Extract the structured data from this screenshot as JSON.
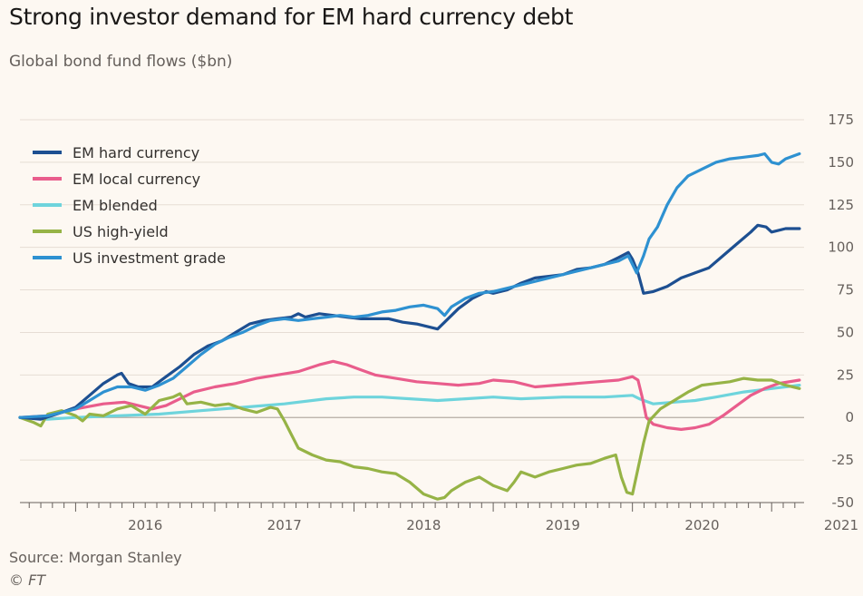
{
  "title": "Strong investor demand for EM hard currency debt",
  "subtitle": "Global bond fund flows ($bn)",
  "source": "Source: Morgan Stanley",
  "credit": "© FT",
  "chart_data": {
    "type": "line",
    "xlim": [
      2015.6,
      2021.22
    ],
    "ylim": [
      -50,
      175
    ],
    "y_ticks": [
      175,
      150,
      125,
      100,
      75,
      50,
      25,
      0,
      -25,
      -50
    ],
    "x_tick_labels": [
      {
        "label": "2016",
        "year": 2016
      },
      {
        "label": "2017",
        "year": 2017
      },
      {
        "label": "2018",
        "year": 2018
      },
      {
        "label": "2019",
        "year": 2019
      },
      {
        "label": "2020",
        "year": 2020
      },
      {
        "label": "2021",
        "year": 2021
      }
    ],
    "grid": "horizontal",
    "legend_position": "top-left",
    "series": [
      {
        "name": "EM hard currency",
        "color": "#1d4f91",
        "points": [
          [
            2015.6,
            0
          ],
          [
            2015.75,
            -1
          ],
          [
            2015.9,
            3
          ],
          [
            2016.0,
            6
          ],
          [
            2016.1,
            13
          ],
          [
            2016.2,
            20
          ],
          [
            2016.3,
            25
          ],
          [
            2016.33,
            26
          ],
          [
            2016.38,
            20
          ],
          [
            2016.45,
            18
          ],
          [
            2016.55,
            18
          ],
          [
            2016.65,
            24
          ],
          [
            2016.75,
            30
          ],
          [
            2016.85,
            37
          ],
          [
            2016.95,
            42
          ],
          [
            2017.05,
            45
          ],
          [
            2017.15,
            50
          ],
          [
            2017.25,
            55
          ],
          [
            2017.35,
            57
          ],
          [
            2017.45,
            58
          ],
          [
            2017.55,
            59
          ],
          [
            2017.6,
            61
          ],
          [
            2017.65,
            59
          ],
          [
            2017.75,
            61
          ],
          [
            2017.85,
            60
          ],
          [
            2017.95,
            59
          ],
          [
            2018.05,
            58
          ],
          [
            2018.15,
            58
          ],
          [
            2018.25,
            58
          ],
          [
            2018.35,
            56
          ],
          [
            2018.45,
            55
          ],
          [
            2018.55,
            53
          ],
          [
            2018.6,
            52
          ],
          [
            2018.65,
            56
          ],
          [
            2018.75,
            64
          ],
          [
            2018.85,
            70
          ],
          [
            2018.95,
            74
          ],
          [
            2019.0,
            73
          ],
          [
            2019.1,
            75
          ],
          [
            2019.2,
            79
          ],
          [
            2019.3,
            82
          ],
          [
            2019.4,
            83
          ],
          [
            2019.5,
            84
          ],
          [
            2019.6,
            87
          ],
          [
            2019.7,
            88
          ],
          [
            2019.8,
            90
          ],
          [
            2019.9,
            94
          ],
          [
            2019.97,
            97
          ],
          [
            2020.0,
            93
          ],
          [
            2020.04,
            85
          ],
          [
            2020.08,
            73
          ],
          [
            2020.15,
            74
          ],
          [
            2020.25,
            77
          ],
          [
            2020.35,
            82
          ],
          [
            2020.45,
            85
          ],
          [
            2020.55,
            88
          ],
          [
            2020.65,
            95
          ],
          [
            2020.75,
            102
          ],
          [
            2020.85,
            109
          ],
          [
            2020.9,
            113
          ],
          [
            2020.96,
            112
          ],
          [
            2021.0,
            109
          ],
          [
            2021.1,
            111
          ],
          [
            2021.2,
            111
          ]
        ]
      },
      {
        "name": "EM local currency",
        "color": "#e95d8c",
        "points": [
          [
            2015.6,
            0
          ],
          [
            2015.8,
            1
          ],
          [
            2016.0,
            5
          ],
          [
            2016.2,
            8
          ],
          [
            2016.35,
            9
          ],
          [
            2016.45,
            7
          ],
          [
            2016.55,
            5
          ],
          [
            2016.65,
            7
          ],
          [
            2016.75,
            11
          ],
          [
            2016.85,
            15
          ],
          [
            2017.0,
            18
          ],
          [
            2017.15,
            20
          ],
          [
            2017.3,
            23
          ],
          [
            2017.45,
            25
          ],
          [
            2017.6,
            27
          ],
          [
            2017.75,
            31
          ],
          [
            2017.85,
            33
          ],
          [
            2017.95,
            31
          ],
          [
            2018.05,
            28
          ],
          [
            2018.15,
            25
          ],
          [
            2018.3,
            23
          ],
          [
            2018.45,
            21
          ],
          [
            2018.6,
            20
          ],
          [
            2018.75,
            19
          ],
          [
            2018.9,
            20
          ],
          [
            2019.0,
            22
          ],
          [
            2019.15,
            21
          ],
          [
            2019.3,
            18
          ],
          [
            2019.45,
            19
          ],
          [
            2019.6,
            20
          ],
          [
            2019.75,
            21
          ],
          [
            2019.9,
            22
          ],
          [
            2020.0,
            24
          ],
          [
            2020.04,
            22
          ],
          [
            2020.07,
            12
          ],
          [
            2020.1,
            0
          ],
          [
            2020.15,
            -4
          ],
          [
            2020.25,
            -6
          ],
          [
            2020.35,
            -7
          ],
          [
            2020.45,
            -6
          ],
          [
            2020.55,
            -4
          ],
          [
            2020.65,
            1
          ],
          [
            2020.75,
            7
          ],
          [
            2020.85,
            13
          ],
          [
            2020.95,
            17
          ],
          [
            2021.05,
            20
          ],
          [
            2021.2,
            22
          ]
        ]
      },
      {
        "name": "EM blended",
        "color": "#6ed4dc",
        "points": [
          [
            2015.6,
            0
          ],
          [
            2015.8,
            -1
          ],
          [
            2016.0,
            0
          ],
          [
            2016.3,
            1
          ],
          [
            2016.6,
            2
          ],
          [
            2016.9,
            4
          ],
          [
            2017.2,
            6
          ],
          [
            2017.5,
            8
          ],
          [
            2017.8,
            11
          ],
          [
            2018.0,
            12
          ],
          [
            2018.2,
            12
          ],
          [
            2018.4,
            11
          ],
          [
            2018.6,
            10
          ],
          [
            2018.8,
            11
          ],
          [
            2019.0,
            12
          ],
          [
            2019.2,
            11
          ],
          [
            2019.5,
            12
          ],
          [
            2019.8,
            12
          ],
          [
            2020.0,
            13
          ],
          [
            2020.05,
            11
          ],
          [
            2020.15,
            8
          ],
          [
            2020.3,
            9
          ],
          [
            2020.45,
            10
          ],
          [
            2020.6,
            12
          ],
          [
            2020.8,
            15
          ],
          [
            2021.0,
            17
          ],
          [
            2021.2,
            19
          ]
        ]
      },
      {
        "name": "US high-yield",
        "color": "#96b346",
        "points": [
          [
            2015.6,
            0
          ],
          [
            2015.7,
            -3
          ],
          [
            2015.75,
            -5
          ],
          [
            2015.8,
            2
          ],
          [
            2015.9,
            4
          ],
          [
            2016.0,
            1
          ],
          [
            2016.05,
            -2
          ],
          [
            2016.1,
            2
          ],
          [
            2016.2,
            1
          ],
          [
            2016.3,
            5
          ],
          [
            2016.4,
            7
          ],
          [
            2016.5,
            2
          ],
          [
            2016.6,
            10
          ],
          [
            2016.7,
            12
          ],
          [
            2016.75,
            14
          ],
          [
            2016.8,
            8
          ],
          [
            2016.9,
            9
          ],
          [
            2017.0,
            7
          ],
          [
            2017.1,
            8
          ],
          [
            2017.2,
            5
          ],
          [
            2017.3,
            3
          ],
          [
            2017.4,
            6
          ],
          [
            2017.45,
            5
          ],
          [
            2017.5,
            -2
          ],
          [
            2017.55,
            -10
          ],
          [
            2017.6,
            -18
          ],
          [
            2017.7,
            -22
          ],
          [
            2017.8,
            -25
          ],
          [
            2017.9,
            -26
          ],
          [
            2018.0,
            -29
          ],
          [
            2018.1,
            -30
          ],
          [
            2018.2,
            -32
          ],
          [
            2018.3,
            -33
          ],
          [
            2018.4,
            -38
          ],
          [
            2018.5,
            -45
          ],
          [
            2018.6,
            -48
          ],
          [
            2018.65,
            -47
          ],
          [
            2018.7,
            -43
          ],
          [
            2018.8,
            -38
          ],
          [
            2018.9,
            -35
          ],
          [
            2019.0,
            -40
          ],
          [
            2019.1,
            -43
          ],
          [
            2019.15,
            -38
          ],
          [
            2019.2,
            -32
          ],
          [
            2019.3,
            -35
          ],
          [
            2019.4,
            -32
          ],
          [
            2019.5,
            -30
          ],
          [
            2019.6,
            -28
          ],
          [
            2019.7,
            -27
          ],
          [
            2019.8,
            -24
          ],
          [
            2019.88,
            -22
          ],
          [
            2019.92,
            -35
          ],
          [
            2019.96,
            -44
          ],
          [
            2020.0,
            -45
          ],
          [
            2020.04,
            -30
          ],
          [
            2020.08,
            -15
          ],
          [
            2020.12,
            -2
          ],
          [
            2020.2,
            5
          ],
          [
            2020.3,
            10
          ],
          [
            2020.4,
            15
          ],
          [
            2020.5,
            19
          ],
          [
            2020.6,
            20
          ],
          [
            2020.7,
            21
          ],
          [
            2020.8,
            23
          ],
          [
            2020.9,
            22
          ],
          [
            2021.0,
            22
          ],
          [
            2021.1,
            19
          ],
          [
            2021.2,
            17
          ]
        ]
      },
      {
        "name": "US investment grade",
        "color": "#2e91d1",
        "points": [
          [
            2015.6,
            0
          ],
          [
            2015.8,
            1
          ],
          [
            2016.0,
            5
          ],
          [
            2016.1,
            10
          ],
          [
            2016.2,
            15
          ],
          [
            2016.3,
            18
          ],
          [
            2016.4,
            18
          ],
          [
            2016.5,
            16
          ],
          [
            2016.6,
            19
          ],
          [
            2016.7,
            23
          ],
          [
            2016.8,
            30
          ],
          [
            2016.9,
            37
          ],
          [
            2017.0,
            43
          ],
          [
            2017.1,
            47
          ],
          [
            2017.2,
            50
          ],
          [
            2017.3,
            54
          ],
          [
            2017.4,
            57
          ],
          [
            2017.5,
            58
          ],
          [
            2017.6,
            57
          ],
          [
            2017.7,
            58
          ],
          [
            2017.8,
            59
          ],
          [
            2017.9,
            60
          ],
          [
            2018.0,
            59
          ],
          [
            2018.1,
            60
          ],
          [
            2018.2,
            62
          ],
          [
            2018.3,
            63
          ],
          [
            2018.4,
            65
          ],
          [
            2018.5,
            66
          ],
          [
            2018.6,
            64
          ],
          [
            2018.65,
            60
          ],
          [
            2018.7,
            65
          ],
          [
            2018.8,
            70
          ],
          [
            2018.9,
            73
          ],
          [
            2019.0,
            74
          ],
          [
            2019.1,
            76
          ],
          [
            2019.2,
            78
          ],
          [
            2019.3,
            80
          ],
          [
            2019.4,
            82
          ],
          [
            2019.5,
            84
          ],
          [
            2019.6,
            86
          ],
          [
            2019.7,
            88
          ],
          [
            2019.8,
            90
          ],
          [
            2019.9,
            92
          ],
          [
            2019.97,
            95
          ],
          [
            2020.0,
            90
          ],
          [
            2020.03,
            85
          ],
          [
            2020.08,
            95
          ],
          [
            2020.12,
            105
          ],
          [
            2020.18,
            112
          ],
          [
            2020.25,
            125
          ],
          [
            2020.32,
            135
          ],
          [
            2020.4,
            142
          ],
          [
            2020.5,
            146
          ],
          [
            2020.6,
            150
          ],
          [
            2020.7,
            152
          ],
          [
            2020.8,
            153
          ],
          [
            2020.9,
            154
          ],
          [
            2020.95,
            155
          ],
          [
            2021.0,
            150
          ],
          [
            2021.05,
            149
          ],
          [
            2021.1,
            152
          ],
          [
            2021.2,
            155
          ]
        ]
      }
    ]
  }
}
